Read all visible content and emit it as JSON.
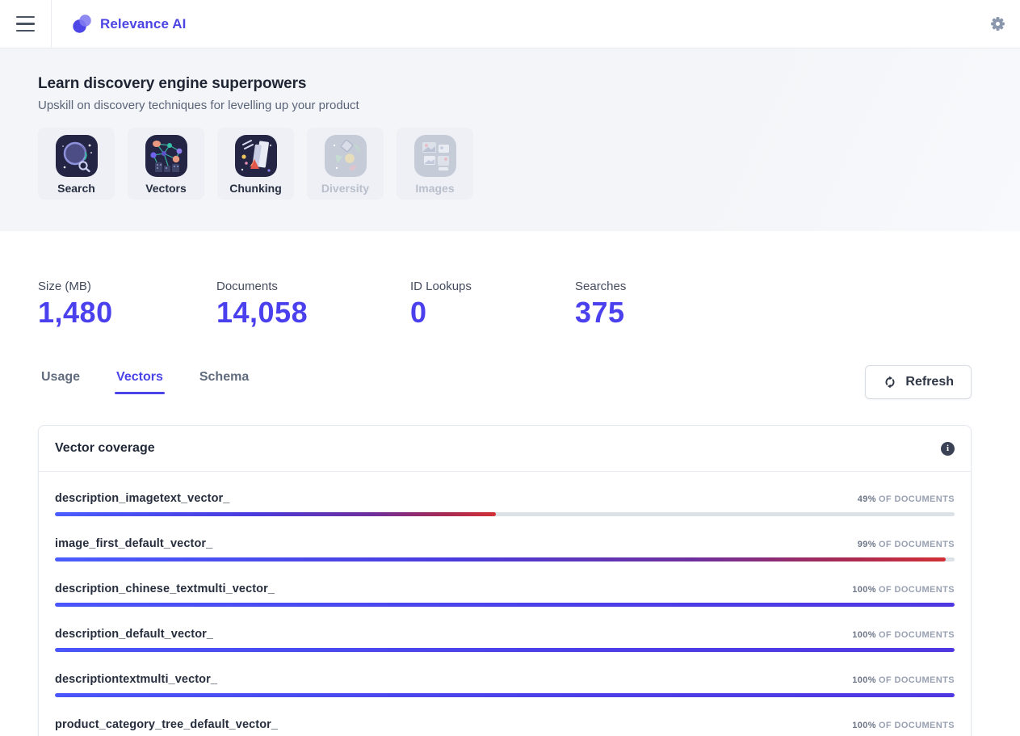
{
  "navbar": {
    "brand": "Relevance AI"
  },
  "hero": {
    "title": "Learn discovery engine superpowers",
    "subtitle": "Upskill on discovery techniques for levelling up your product",
    "cards": [
      {
        "label": "Search",
        "icon": "search-planet-icon",
        "enabled": true
      },
      {
        "label": "Vectors",
        "icon": "vector-network-icon",
        "enabled": true
      },
      {
        "label": "Chunking",
        "icon": "rocket-books-icon",
        "enabled": true
      },
      {
        "label": "Diversity",
        "icon": "shapes-icon",
        "enabled": false
      },
      {
        "label": "Images",
        "icon": "photo-frames-icon",
        "enabled": false
      }
    ]
  },
  "stats": [
    {
      "label": "Size (MB)",
      "value": "1,480"
    },
    {
      "label": "Documents",
      "value": "14,058"
    },
    {
      "label": "ID Lookups",
      "value": "0"
    },
    {
      "label": "Searches",
      "value": "375"
    }
  ],
  "tabs": [
    {
      "label": "Usage",
      "active": false
    },
    {
      "label": "Vectors",
      "active": true
    },
    {
      "label": "Schema",
      "active": false
    }
  ],
  "refresh_label": "Refresh",
  "panel": {
    "title": "Vector coverage",
    "suffix": "OF DOCUMENTS",
    "rows": [
      {
        "name": "description_imagetext_vector_",
        "percent": 49
      },
      {
        "name": "image_first_default_vector_",
        "percent": 99
      },
      {
        "name": "description_chinese_textmulti_vector_",
        "percent": 100
      },
      {
        "name": "description_default_vector_",
        "percent": 100
      },
      {
        "name": "descriptiontextmulti_vector_",
        "percent": 100
      },
      {
        "name": "product_category_tree_default_vector_",
        "percent": 100
      }
    ]
  },
  "colors": {
    "brand": "#4c45e4",
    "stat_value": "#4b40ee",
    "tab_active": "#4b44e8",
    "bar_blue": "#4a5cff",
    "bar_red": "#d23036",
    "bar_track": "#dde1e8",
    "hero_bg": "#f3f5f8"
  }
}
